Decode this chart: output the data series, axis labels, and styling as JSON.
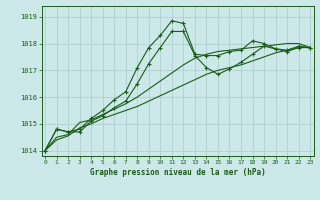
{
  "x": [
    0,
    1,
    2,
    3,
    4,
    5,
    6,
    7,
    8,
    9,
    10,
    11,
    12,
    13,
    14,
    15,
    16,
    17,
    18,
    19,
    20,
    21,
    22,
    23
  ],
  "line1": [
    1014.0,
    1014.8,
    1014.7,
    1014.8,
    1015.2,
    1015.5,
    1015.9,
    1016.2,
    1017.1,
    1017.85,
    1018.3,
    1018.85,
    1018.75,
    1017.6,
    1017.55,
    1017.55,
    1017.7,
    1017.75,
    1018.1,
    1018.0,
    1017.8,
    1017.75,
    1017.9,
    1017.85
  ],
  "line2": [
    1014.0,
    1014.8,
    1014.7,
    1014.7,
    1015.1,
    1015.3,
    1015.6,
    1015.85,
    1016.5,
    1017.25,
    1017.85,
    1018.45,
    1018.45,
    1017.55,
    1017.1,
    1016.85,
    1017.05,
    1017.3,
    1017.6,
    1017.9,
    1017.8,
    1017.7,
    1017.85,
    1017.85
  ],
  "line3": [
    1014.0,
    1014.5,
    1014.6,
    1015.05,
    1015.15,
    1015.35,
    1015.55,
    1015.75,
    1016.0,
    1016.3,
    1016.6,
    1016.9,
    1017.2,
    1017.45,
    1017.6,
    1017.7,
    1017.75,
    1017.8,
    1017.85,
    1017.9,
    1017.95,
    1018.0,
    1018.0,
    1017.85
  ],
  "line4": [
    1014.0,
    1014.4,
    1014.55,
    1014.85,
    1015.0,
    1015.2,
    1015.35,
    1015.5,
    1015.65,
    1015.85,
    1016.05,
    1016.25,
    1016.45,
    1016.65,
    1016.85,
    1017.0,
    1017.1,
    1017.2,
    1017.35,
    1017.5,
    1017.65,
    1017.75,
    1017.85,
    1017.85
  ],
  "ylim": [
    1013.8,
    1019.4
  ],
  "yticks": [
    1014,
    1015,
    1016,
    1017,
    1018,
    1019
  ],
  "xlim": [
    -0.3,
    23.3
  ],
  "xlabel": "Graphe pression niveau de la mer (hPa)",
  "bg_color": "#cce8e8",
  "line_color": "#1a5c1a",
  "grid_color": "#aacccc",
  "label_color": "#1a5c1a",
  "axis_color": "#1a5c1a",
  "figsize": [
    3.2,
    2.0
  ],
  "dpi": 100
}
